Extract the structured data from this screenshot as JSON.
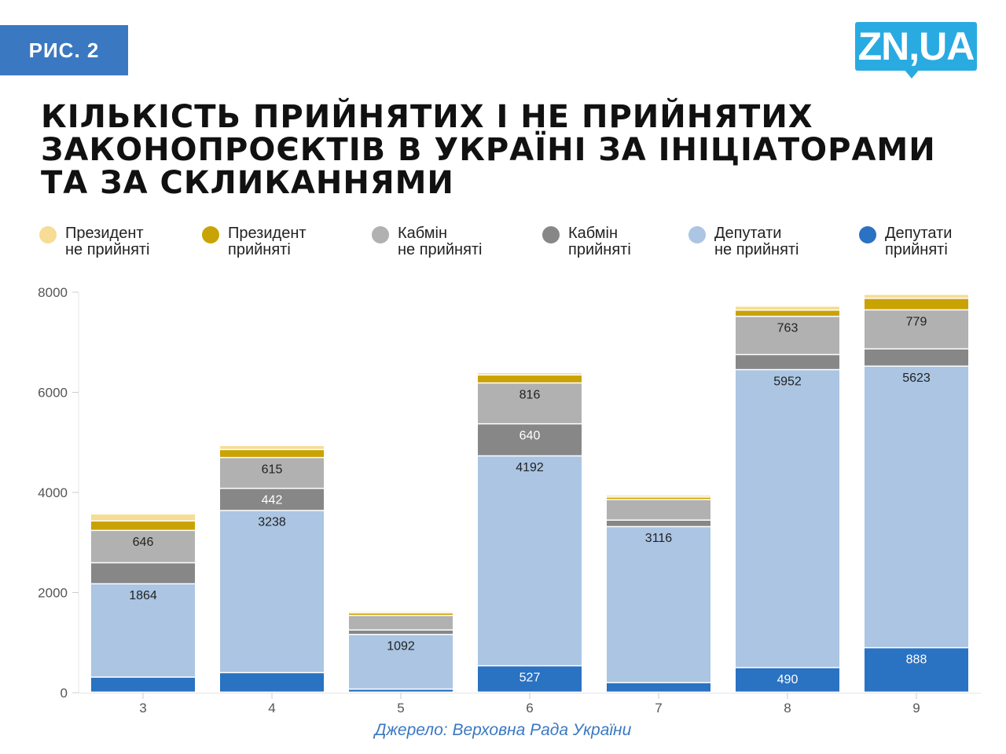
{
  "badge": "РИС. 2",
  "logo": "ZN,UA",
  "title": "КІЛЬКІСТЬ ПРИЙНЯТИХ І НЕ ПРИЙНЯТИХ ЗАКОНОПРОЄКТІВ В УКРАЇНІ ЗА ІНІЦІАТОРАМИ ТА ЗА СКЛИКАННЯМИ",
  "source": "Джерело: Верховна Рада України",
  "chart_data": {
    "type": "bar",
    "stacked": true,
    "categories": [
      "3",
      "4",
      "5",
      "6",
      "7",
      "8",
      "9"
    ],
    "ylim": [
      0,
      8000
    ],
    "yticks": [
      "0",
      "2000",
      "4000",
      "6000",
      "8000"
    ],
    "grid": false,
    "legend_position": "top",
    "series": [
      {
        "name": "Депутати прийняті",
        "color": "#2a72c2",
        "values": [
          300,
          390,
          60,
          527,
          190,
          490,
          888
        ],
        "labels": [
          null,
          null,
          null,
          "527",
          null,
          "490",
          "888"
        ],
        "label_color": "#ffffff"
      },
      {
        "name": "Депутати не прийняті",
        "color": "#abc5e3",
        "values": [
          1864,
          3238,
          1092,
          4192,
          3116,
          5952,
          5623
        ],
        "labels": [
          "1864",
          "3238",
          "1092",
          "4192",
          "3116",
          "5952",
          "5623"
        ],
        "label_color": "#222222"
      },
      {
        "name": "Кабмін прийняті",
        "color": "#878787",
        "values": [
          420,
          442,
          90,
          640,
          130,
          300,
          345
        ],
        "labels": [
          null,
          "442",
          null,
          "640",
          null,
          null,
          null
        ],
        "label_color": "#ffffff"
      },
      {
        "name": "Кабмін не прийняті",
        "color": "#b1b1b1",
        "values": [
          646,
          615,
          290,
          816,
          410,
          763,
          779
        ],
        "labels": [
          "646",
          "615",
          null,
          "816",
          null,
          "763",
          "779"
        ],
        "label_color": "#222222"
      },
      {
        "name": "Президент прийняті",
        "color": "#c9a305",
        "values": [
          190,
          160,
          50,
          160,
          50,
          125,
          230
        ],
        "labels": [
          null,
          null,
          null,
          null,
          null,
          null,
          null
        ],
        "label_color": "#222222"
      },
      {
        "name": "Президент не прийняті",
        "color": "#f6dc94",
        "values": [
          140,
          80,
          30,
          50,
          40,
          80,
          80
        ],
        "labels": [
          null,
          null,
          null,
          null,
          null,
          null,
          null
        ],
        "label_color": "#222222"
      }
    ]
  },
  "legend": [
    {
      "label": "Президент\nне прийняті",
      "color": "#f6dc94"
    },
    {
      "label": "Президент\nприйняті",
      "color": "#c9a305"
    },
    {
      "label": "Кабмін\nне прийняті",
      "color": "#b1b1b1"
    },
    {
      "label": "Кабмін\nприйняті",
      "color": "#878787"
    },
    {
      "label": "Депутати\nне прийняті",
      "color": "#abc5e3"
    },
    {
      "label": "Депутати\nприйняті",
      "color": "#2a72c2"
    }
  ]
}
